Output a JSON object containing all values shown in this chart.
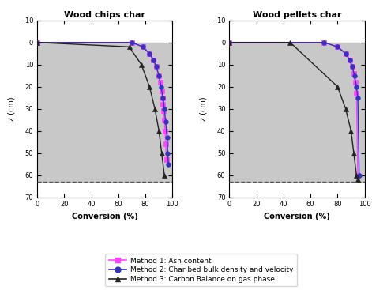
{
  "title_left": "Wood chips char",
  "title_right": "Wood pellets char",
  "xlabel": "Conversion (%)",
  "ylabel": "z (cm)",
  "xlim": [
    0,
    100
  ],
  "ylim": [
    70,
    -10
  ],
  "yticks": [
    -10,
    0,
    10,
    20,
    30,
    40,
    50,
    60,
    70
  ],
  "xticks": [
    0,
    20,
    40,
    60,
    80,
    100
  ],
  "gray_region_y_start": 0,
  "gray_region_y_end": 63,
  "dashed_line_y": 63,
  "chips_m1_x": [
    0,
    70,
    78,
    83,
    86,
    88,
    90,
    91,
    92,
    92.5,
    93,
    93.5,
    94,
    94.5,
    95,
    95.5
  ],
  "chips_m1_y": [
    0,
    0,
    2,
    5,
    8,
    11,
    15,
    18,
    22,
    25,
    28,
    31,
    35,
    40,
    46,
    53
  ],
  "chips_m2_x": [
    0,
    70,
    78,
    83,
    86,
    88,
    90,
    91.5,
    93,
    94,
    95,
    96,
    96.5,
    97
  ],
  "chips_m2_y": [
    0,
    0,
    2,
    5,
    8,
    11,
    15,
    20,
    25,
    30,
    36,
    43,
    50,
    55
  ],
  "chips_m3_x": [
    0,
    68,
    77,
    83,
    87,
    90,
    92,
    94
  ],
  "chips_m3_y": [
    0,
    2,
    10,
    20,
    30,
    40,
    50,
    60
  ],
  "pellets_m1_x": [
    0,
    70,
    80,
    86,
    89,
    91,
    92,
    93,
    94,
    95
  ],
  "pellets_m1_y": [
    0,
    0,
    2,
    5,
    8,
    11,
    14,
    18,
    23,
    60
  ],
  "pellets_m2_x": [
    0,
    70,
    80,
    86,
    89,
    91,
    92.5,
    94,
    95,
    96
  ],
  "pellets_m2_y": [
    0,
    0,
    2,
    5,
    8,
    11,
    15,
    20,
    25,
    60
  ],
  "pellets_m3_x": [
    0,
    45,
    80,
    86,
    90,
    92,
    94,
    95
  ],
  "pellets_m3_y": [
    0,
    0,
    20,
    30,
    40,
    50,
    60,
    62
  ],
  "color_m1": "#FF44FF",
  "color_m2": "#3333BB",
  "color_m3": "#222222",
  "marker_m1": "s",
  "marker_m2": "o",
  "marker_m3": "^",
  "marker_size_m1": 4,
  "marker_size_m2": 4,
  "marker_size_m3": 5,
  "line_width": 1.0,
  "legend_labels": [
    "Method 1: Ash content",
    "Method 2: Char bed bulk density and velocity",
    "Method 3: Carbon Balance on gas phase"
  ],
  "gray_color": "#C8C8C8",
  "dashed_color": "#555555",
  "title_fontsize": 8,
  "axis_label_fontsize": 7,
  "tick_fontsize": 6,
  "legend_fontsize": 6.5
}
